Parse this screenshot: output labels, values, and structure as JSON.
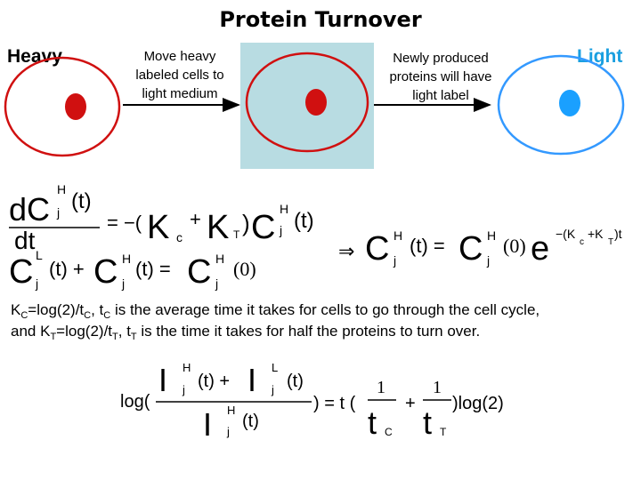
{
  "header": {
    "title": "Protein Turnover"
  },
  "labels": {
    "heavy": "Heavy",
    "light": "Light",
    "step1": [
      "Move heavy",
      "labeled cells to",
      "light medium"
    ],
    "step2": [
      "Newly produced",
      "proteins will have",
      "light label"
    ]
  },
  "equation1": [
    "dC",
    "H",
    "j",
    "(t)",
    "dt",
    "= −(",
    "K",
    "c",
    "+",
    "K",
    "T",
    ")",
    "C",
    "H",
    "j",
    "(t)"
  ],
  "equation2": [
    "C",
    "L",
    "j",
    "(t) +",
    "C",
    "H",
    "j",
    "(t) =",
    "C",
    "H",
    "j",
    "(0)"
  ],
  "equation3": [
    "⇒",
    "C",
    "H",
    "j",
    "(t) =",
    "C",
    "H",
    "j",
    "(0)",
    "e",
    "−(K",
    "c",
    "+K",
    "T",
    ")t"
  ],
  "paragraph": {
    "line1": [
      "K",
      "C",
      "=log(2)/t",
      "C",
      ", t",
      "C",
      " is the average time it takes for cells to go through the cell cycle,"
    ],
    "line2": [
      "and K",
      "T",
      "=log(2)/t",
      "T",
      ", t",
      "T",
      " is the time it takes for half the proteins to turn over."
    ]
  },
  "equation4": [
    "log(",
    "I",
    "H",
    "j",
    "(t) +",
    "I",
    "L",
    "j",
    "(t)",
    "I",
    "H",
    "j",
    "(t)",
    ") = t (",
    "1",
    "t",
    "C",
    "+",
    "1",
    "t",
    "T",
    ")log(2)"
  ]
}
